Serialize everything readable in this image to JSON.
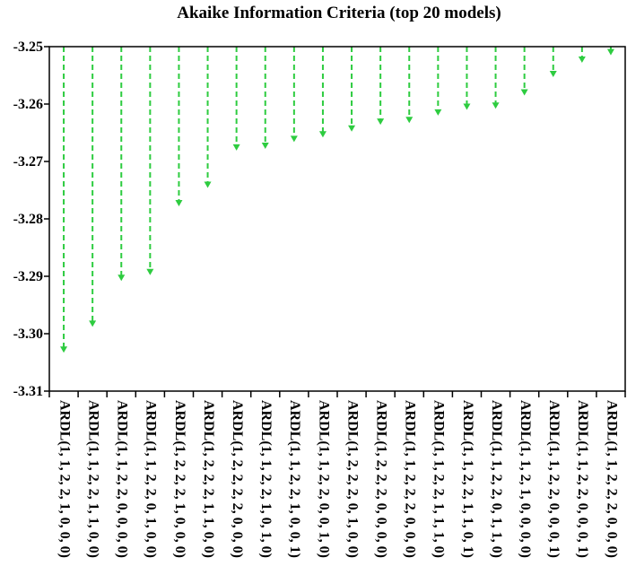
{
  "chart_data": {
    "type": "lollipop",
    "title": "Akaike Information Criteria (top 20 models)",
    "xlabel": "",
    "ylabel": "",
    "ylim": [
      -3.31,
      -3.25
    ],
    "yticks": [
      "-3.25",
      "-3.26",
      "-3.27",
      "-3.28",
      "-3.29",
      "-3.30",
      "-3.31"
    ],
    "yticks_values": [
      -3.25,
      -3.26,
      -3.27,
      -3.28,
      -3.29,
      -3.3,
      -3.31
    ],
    "grid": false,
    "marker_color": "#2ecc40",
    "categories": [
      "ARDL(1, 1, 2, 2, 1, 0, 0, 0)",
      "ARDL(1, 1, 2, 2, 1, 1, 0, 0)",
      "ARDL(1, 1, 2, 2, 0, 0, 0, 0)",
      "ARDL(1, 1, 2, 2, 0, 1, 0, 0)",
      "ARDL(1, 2, 2, 2, 1, 0, 0, 0)",
      "ARDL(1, 2, 2, 2, 1, 1, 0, 0)",
      "ARDL(1, 2, 2, 2, 2, 0, 0, 0)",
      "ARDL(1, 1, 2, 2, 1, 0, 1, 0)",
      "ARDL(1, 1, 2, 2, 1, 0, 0, 1)",
      "ARDL(1, 1, 2, 2, 0, 0, 1, 0)",
      "ARDL(1, 2, 2, 2, 0, 1, 0, 0)",
      "ARDL(1, 2, 2, 2, 0, 0, 0, 0)",
      "ARDL(1, 1, 2, 2, 2, 0, 0, 0)",
      "ARDL(1, 1, 2, 2, 1, 1, 1, 0)",
      "ARDL(1, 1, 2, 2, 1, 1, 0, 1)",
      "ARDL(1, 1, 2, 2, 0, 1, 1, 0)",
      "ARDL(1, 1, 2, 1, 0, 0, 0, 0)",
      "ARDL(1, 1, 2, 2, 0, 0, 0, 1)",
      "ARDL(1, 1, 2, 2, 0, 0, 0, 1)",
      "ARDL(1, 1, 2, 2, 2, 0, 0, 0)"
    ],
    "values": [
      -3.303,
      -3.2985,
      -3.2905,
      -3.2895,
      -3.2775,
      -3.2743,
      -3.2678,
      -3.2675,
      -3.2663,
      -3.2655,
      -3.2645,
      -3.2633,
      -3.263,
      -3.2617,
      -3.2607,
      -3.2605,
      -3.2582,
      -3.255,
      -3.2525,
      -3.2512
    ]
  }
}
